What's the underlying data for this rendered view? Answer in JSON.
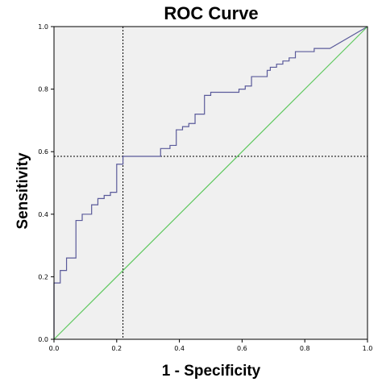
{
  "chart_data": {
    "type": "line",
    "title": "ROC Curve",
    "xlabel": "1 - Specificity",
    "ylabel": "Sensitivity",
    "xlim": [
      0,
      1
    ],
    "ylim": [
      0,
      1
    ],
    "x_ticks": [
      "0.0",
      "0.2",
      "0.4",
      "0.6",
      "0.8",
      "1.0"
    ],
    "y_ticks": [
      "0.0",
      "0.2",
      "0.4",
      "0.6",
      "0.8",
      "1.0"
    ],
    "grid": false,
    "legend": "none",
    "plot_background": "#f0f0f0",
    "series": [
      {
        "color": "#5a5a9a",
        "kind": "step",
        "points": [
          [
            0.0,
            0.0
          ],
          [
            0.0,
            0.18
          ],
          [
            0.02,
            0.18
          ],
          [
            0.02,
            0.22
          ],
          [
            0.04,
            0.22
          ],
          [
            0.04,
            0.26
          ],
          [
            0.07,
            0.26
          ],
          [
            0.07,
            0.38
          ],
          [
            0.09,
            0.38
          ],
          [
            0.09,
            0.4
          ],
          [
            0.12,
            0.4
          ],
          [
            0.12,
            0.43
          ],
          [
            0.14,
            0.43
          ],
          [
            0.14,
            0.45
          ],
          [
            0.16,
            0.45
          ],
          [
            0.16,
            0.46
          ],
          [
            0.18,
            0.46
          ],
          [
            0.18,
            0.47
          ],
          [
            0.2,
            0.47
          ],
          [
            0.2,
            0.56
          ],
          [
            0.22,
            0.56
          ],
          [
            0.22,
            0.585
          ],
          [
            0.34,
            0.585
          ],
          [
            0.34,
            0.61
          ],
          [
            0.37,
            0.61
          ],
          [
            0.37,
            0.62
          ],
          [
            0.39,
            0.62
          ],
          [
            0.39,
            0.67
          ],
          [
            0.41,
            0.67
          ],
          [
            0.41,
            0.68
          ],
          [
            0.43,
            0.68
          ],
          [
            0.43,
            0.69
          ],
          [
            0.45,
            0.69
          ],
          [
            0.45,
            0.72
          ],
          [
            0.48,
            0.72
          ],
          [
            0.48,
            0.78
          ],
          [
            0.5,
            0.78
          ],
          [
            0.5,
            0.79
          ],
          [
            0.59,
            0.79
          ],
          [
            0.59,
            0.8
          ],
          [
            0.61,
            0.8
          ],
          [
            0.61,
            0.81
          ],
          [
            0.63,
            0.81
          ],
          [
            0.63,
            0.84
          ],
          [
            0.68,
            0.84
          ],
          [
            0.68,
            0.86
          ],
          [
            0.69,
            0.86
          ],
          [
            0.69,
            0.87
          ],
          [
            0.71,
            0.87
          ],
          [
            0.71,
            0.88
          ],
          [
            0.73,
            0.88
          ],
          [
            0.73,
            0.89
          ],
          [
            0.75,
            0.89
          ],
          [
            0.75,
            0.9
          ],
          [
            0.77,
            0.9
          ],
          [
            0.77,
            0.92
          ],
          [
            0.83,
            0.92
          ],
          [
            0.83,
            0.93
          ],
          [
            0.88,
            0.93
          ],
          [
            1.0,
            1.0
          ]
        ]
      },
      {
        "color": "#5ec85e",
        "kind": "reference",
        "points": [
          [
            0,
            0
          ],
          [
            1,
            1
          ]
        ]
      }
    ],
    "annotations": [
      {
        "type": "vline",
        "x": 0.22,
        "style": "dotted",
        "color": "#000000"
      },
      {
        "type": "hline",
        "y": 0.585,
        "style": "dotted",
        "color": "#000000"
      }
    ]
  }
}
